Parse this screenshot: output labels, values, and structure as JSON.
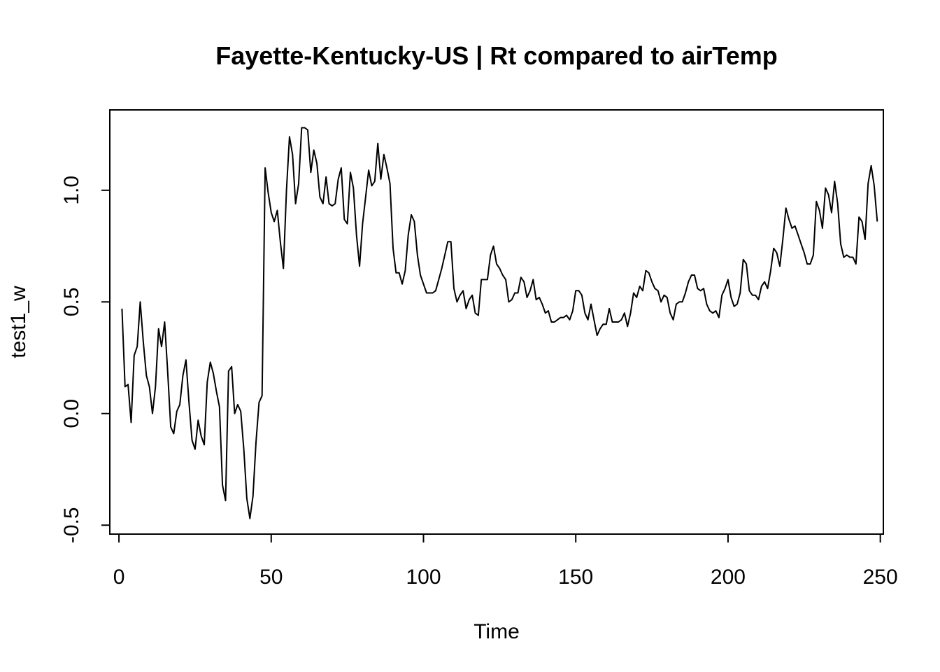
{
  "chart_data": {
    "type": "line",
    "title": "Fayette-Kentucky-US | Rt compared to airTemp",
    "xlabel": "Time",
    "ylabel": "test1_w",
    "xlim": [
      -3,
      251
    ],
    "ylim": [
      -0.54,
      1.36
    ],
    "x_ticks": [
      0,
      50,
      100,
      150,
      200,
      250
    ],
    "x_tick_labels": [
      "0",
      "50",
      "100",
      "150",
      "200",
      "250"
    ],
    "y_ticks": [
      -0.5,
      0.0,
      0.5,
      1.0
    ],
    "y_tick_labels": [
      "-0.5",
      "0.0",
      "0.5",
      "1.0"
    ],
    "grid": false,
    "series": [
      {
        "name": "test1_w",
        "color": "#000000",
        "x_start": 1,
        "values": [
          0.47,
          0.12,
          0.13,
          -0.04,
          0.26,
          0.3,
          0.5,
          0.32,
          0.17,
          0.12,
          0.0,
          0.12,
          0.38,
          0.3,
          0.41,
          0.19,
          -0.06,
          -0.09,
          0.01,
          0.04,
          0.17,
          0.24,
          0.05,
          -0.12,
          -0.16,
          -0.03,
          -0.1,
          -0.14,
          0.14,
          0.23,
          0.18,
          0.1,
          0.03,
          -0.32,
          -0.39,
          0.19,
          0.21,
          0.0,
          0.04,
          0.01,
          -0.16,
          -0.38,
          -0.47,
          -0.37,
          -0.13,
          0.05,
          0.08,
          1.1,
          0.99,
          0.9,
          0.86,
          0.91,
          0.77,
          0.65,
          1.0,
          1.24,
          1.16,
          0.94,
          1.03,
          1.28,
          1.28,
          1.27,
          1.08,
          1.18,
          1.12,
          0.97,
          0.94,
          1.06,
          0.94,
          0.93,
          0.94,
          1.05,
          1.1,
          0.87,
          0.85,
          1.08,
          1.01,
          0.8,
          0.66,
          0.85,
          0.97,
          1.09,
          1.02,
          1.04,
          1.21,
          1.05,
          1.16,
          1.1,
          1.03,
          0.74,
          0.63,
          0.63,
          0.58,
          0.64,
          0.8,
          0.89,
          0.86,
          0.71,
          0.62,
          0.58,
          0.54,
          0.54,
          0.54,
          0.55,
          0.6,
          0.65,
          0.71,
          0.77,
          0.77,
          0.56,
          0.5,
          0.53,
          0.55,
          0.47,
          0.51,
          0.53,
          0.45,
          0.44,
          0.6,
          0.6,
          0.6,
          0.71,
          0.75,
          0.67,
          0.65,
          0.62,
          0.6,
          0.5,
          0.51,
          0.54,
          0.54,
          0.61,
          0.59,
          0.52,
          0.55,
          0.6,
          0.51,
          0.52,
          0.49,
          0.45,
          0.46,
          0.41,
          0.41,
          0.42,
          0.43,
          0.43,
          0.44,
          0.42,
          0.46,
          0.55,
          0.55,
          0.53,
          0.45,
          0.42,
          0.49,
          0.42,
          0.35,
          0.38,
          0.4,
          0.4,
          0.47,
          0.41,
          0.41,
          0.41,
          0.42,
          0.45,
          0.39,
          0.45,
          0.54,
          0.52,
          0.57,
          0.55,
          0.64,
          0.63,
          0.59,
          0.56,
          0.55,
          0.5,
          0.53,
          0.52,
          0.45,
          0.42,
          0.49,
          0.5,
          0.5,
          0.54,
          0.59,
          0.62,
          0.62,
          0.56,
          0.55,
          0.56,
          0.49,
          0.46,
          0.45,
          0.46,
          0.43,
          0.53,
          0.56,
          0.6,
          0.52,
          0.48,
          0.49,
          0.54,
          0.69,
          0.67,
          0.55,
          0.53,
          0.53,
          0.51,
          0.57,
          0.59,
          0.56,
          0.64,
          0.74,
          0.72,
          0.66,
          0.78,
          0.92,
          0.87,
          0.83,
          0.84,
          0.8,
          0.76,
          0.72,
          0.67,
          0.67,
          0.71,
          0.95,
          0.91,
          0.83,
          1.01,
          0.98,
          0.9,
          1.04,
          0.94,
          0.76,
          0.7,
          0.71,
          0.7,
          0.7,
          0.67,
          0.88,
          0.86,
          0.78,
          1.03,
          1.11,
          1.02,
          0.86
        ]
      }
    ]
  }
}
